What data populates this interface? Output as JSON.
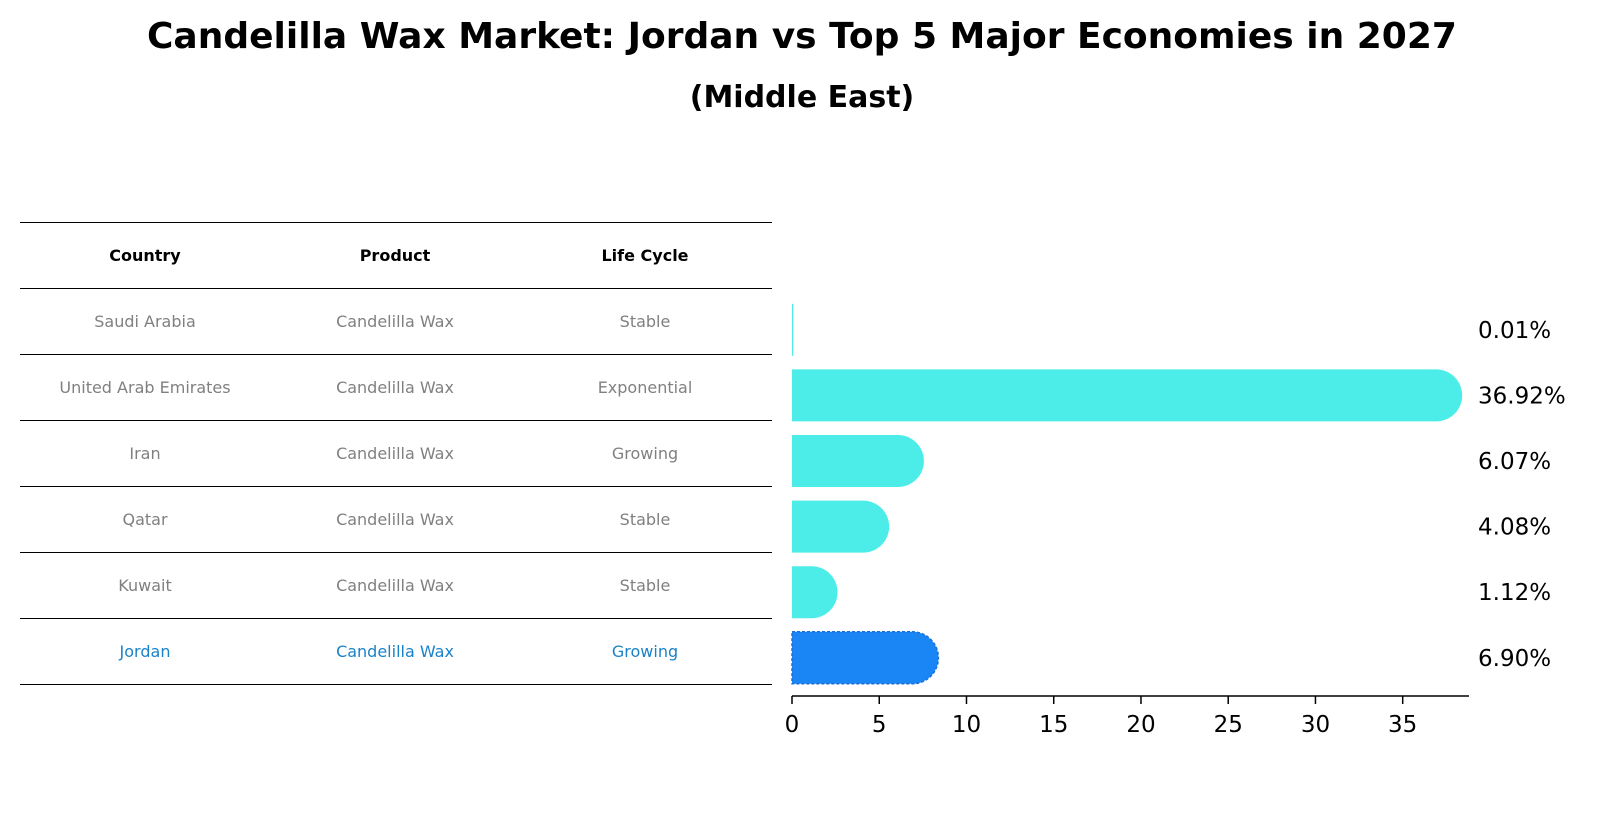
{
  "title": "Candelilla Wax Market: Jordan vs Top 5 Major Economies in 2027",
  "subtitle": "(Middle East)",
  "table": {
    "headers": [
      "Country",
      "Product",
      "Life Cycle"
    ],
    "rows": [
      [
        "Saudi Arabia",
        "Candelilla Wax",
        "Stable"
      ],
      [
        "United Arab Emirates",
        "Candelilla Wax",
        "Exponential"
      ],
      [
        "Iran",
        "Candelilla Wax",
        "Growing"
      ],
      [
        "Qatar",
        "Candelilla Wax",
        "Stable"
      ],
      [
        "Kuwait",
        "Candelilla Wax",
        "Stable"
      ],
      [
        "Jordan",
        "Candelilla Wax",
        "Growing"
      ]
    ],
    "highlight_row": "Jordan",
    "highlight_color": "#1a82c8"
  },
  "chart_data": {
    "type": "bar",
    "orientation": "horizontal",
    "categories": [
      "Saudi Arabia",
      "United Arab Emirates",
      "Iran",
      "Qatar",
      "Kuwait",
      "Jordan"
    ],
    "values": [
      0.01,
      36.92,
      6.07,
      4.08,
      1.12,
      6.9
    ],
    "data_labels": [
      "0.01%",
      "36.92%",
      "6.07%",
      "4.08%",
      "1.12%",
      "6.90%"
    ],
    "xlim": [
      0,
      38.8
    ],
    "xticks": [
      0,
      5,
      10,
      15,
      20,
      25,
      30,
      35
    ],
    "bar_color": "#4cede8",
    "highlight_color": "#1a86f5",
    "highlight_category": "Jordan",
    "grid": false
  }
}
